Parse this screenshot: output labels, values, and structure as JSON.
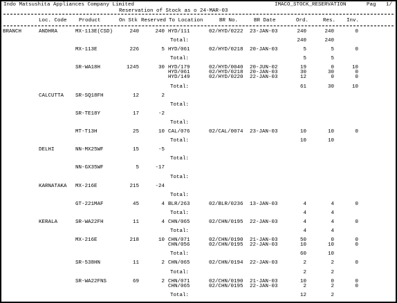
{
  "header": {
    "company": "Indo Matsushita Appliances Company Limited",
    "report": "IMACO_STOCK_RESERVATION",
    "page_label": "Pag",
    "page": "1/",
    "subtitle": "Reservation of Stock as o 24-MAR-03"
  },
  "columns": {
    "loc_code": "Loc. Code",
    "product": "Product",
    "on_stk": "On Stk",
    "reserved": "Reserved",
    "to_location": "To Location",
    "br_no": "BR No.",
    "br_date": "BR Date",
    "ord": "Ord.",
    "res": "Res.",
    "inv": "Inv."
  },
  "rows": [
    {
      "branch": "BRANCH",
      "location": "ANDHRA",
      "product": "MX-113E(CSD)",
      "on_stk": 240,
      "reserved": 240,
      "allocations": [
        {
          "to": "HYD/111",
          "br_no": "02/HYD/0222",
          "br_date": "23-JAN-03",
          "ord": 240,
          "res": 240,
          "inv": 0
        }
      ]
    },
    {
      "label": "Total:",
      "ord": 240,
      "res": 240
    },
    {
      "product": "MX-113E",
      "on_stk": 226,
      "reserved": 5,
      "allocations": [
        {
          "to": "HYD/061",
          "br_no": "02/HYD/0218",
          "br_date": "20-JAN-03",
          "ord": 5,
          "res": 5,
          "inv": 0
        }
      ]
    },
    {
      "label": "Total:",
      "ord": 5,
      "res": 5
    },
    {
      "product": "SR-WA18H",
      "on_stk": 1245,
      "reserved": 30,
      "allocations": [
        {
          "to": "HYD/179",
          "br_no": "02/HYD/0040",
          "br_date": "20-JUN-02",
          "ord": 19,
          "res": 0,
          "inv": 10
        },
        {
          "to": "HYD/061",
          "br_no": "02/HYD/0218",
          "br_date": "20-JAN-03",
          "ord": 30,
          "res": 30,
          "inv": 0
        },
        {
          "to": "HYD/149",
          "br_no": "02/HYD/0220",
          "br_date": "22-JAN-03",
          "ord": 12,
          "res": 0,
          "inv": 0
        }
      ]
    },
    {
      "label": "Total:",
      "ord": 61,
      "res": 30,
      "inv": 10
    },
    {
      "location": "CALCUTTA",
      "product": "SR-SQ18FH",
      "on_stk": 12,
      "reserved": 2
    },
    {
      "label": "Total:"
    },
    {
      "product": "SR-TE18Y",
      "on_stk": 17,
      "reserved": -2
    },
    {
      "label": "Total:"
    },
    {
      "product": "MT-T13H",
      "on_stk": 25,
      "reserved": 10,
      "allocations": [
        {
          "to": "CAL/076",
          "br_no": "02/CAL/0074",
          "br_date": "23-JAN-03",
          "ord": 10,
          "res": 10,
          "inv": 0
        }
      ]
    },
    {
      "label": "Total:",
      "ord": 10,
      "res": 10
    },
    {
      "location": "DELHI",
      "product": "NN-MX25WF",
      "on_stk": 15,
      "reserved": -5
    },
    {
      "label": "Total:"
    },
    {
      "product": "NN-GX35WF",
      "on_stk": 5,
      "reserved": -17
    },
    {
      "label": "Total:"
    },
    {
      "location": "KARNATAKA",
      "product": "MX-216E",
      "on_stk": 215,
      "reserved": -24
    },
    {
      "label": "Total:"
    },
    {
      "product": "GT-221MAF",
      "on_stk": 45,
      "reserved": 4,
      "allocations": [
        {
          "to": "BLR/263",
          "br_no": "02/BLR/0236",
          "br_date": "13-JAN-03",
          "ord": 4,
          "res": 4,
          "inv": 0
        }
      ]
    },
    {
      "label": "Total:",
      "ord": 4,
      "res": 4
    },
    {
      "location": "KERALA",
      "product": "SR-WA22FH",
      "on_stk": 11,
      "reserved": 4,
      "allocations": [
        {
          "to": "CHN/065",
          "br_no": "02/CHN/0195",
          "br_date": "22-JAN-03",
          "ord": 4,
          "res": 4,
          "inv": 0
        }
      ]
    },
    {
      "label": "Total:",
      "ord": 4,
      "res": 4
    },
    {
      "product": "MX-216E",
      "on_stk": 218,
      "reserved": 10,
      "allocations": [
        {
          "to": "CHN/071",
          "br_no": "02/CHN/0190",
          "br_date": "21-JAN-03",
          "ord": 50,
          "res": 0,
          "inv": 0
        },
        {
          "to": "CHN/056",
          "br_no": "02/CHN/0195",
          "br_date": "22-JAN-03",
          "ord": 10,
          "res": 10,
          "inv": 0
        }
      ]
    },
    {
      "label": "Total:",
      "ord": 60,
      "res": 10
    },
    {
      "product": "SR-538HN",
      "on_stk": 11,
      "reserved": 2,
      "allocations": [
        {
          "to": "CHN/065",
          "br_no": "02/CHN/0194",
          "br_date": "22-JAN-03",
          "ord": 2,
          "res": 2,
          "inv": 0
        }
      ]
    },
    {
      "label": "Total:",
      "ord": 2,
      "res": 2
    },
    {
      "product": "SR-WA22FNS",
      "on_stk": 69,
      "reserved": 2,
      "allocations": [
        {
          "to": "CHN/071",
          "br_no": "02/CHN/0190",
          "br_date": "21-JAN-03",
          "ord": 10,
          "res": 0,
          "inv": 0
        },
        {
          "to": "CHN/065",
          "br_no": "02/CHN/0195",
          "br_date": "22-JAN-03",
          "ord": 2,
          "res": 2,
          "inv": 0
        }
      ]
    },
    {
      "label": "Total:",
      "ord": 12,
      "res": 2
    }
  ]
}
